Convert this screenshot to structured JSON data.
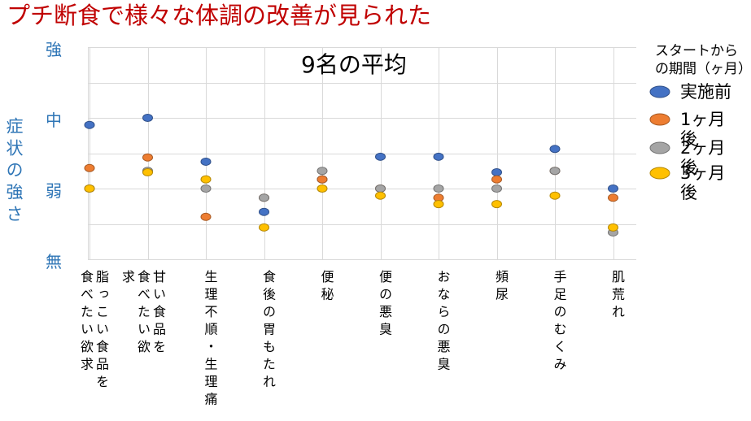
{
  "page": {
    "title": "プチ断食で様々な体調の改善が見られた"
  },
  "colors": {
    "title_text": "#C00000",
    "axis_text": "#2E75B6",
    "gridline": "#D9D9D9"
  },
  "chart_data": {
    "type": "scatter",
    "title": "9名の平均",
    "ylabel": "症状の強さ",
    "categories": [
      "脂っこい食品を食べたい欲求",
      "甘い食品を食べたい欲求",
      "生理不順・生理痛",
      "食後の胃もたれ",
      "便秘",
      "便の悪臭",
      "おならの悪臭",
      "頻尿",
      "手足のむくみ",
      "肌荒れ"
    ],
    "y_tick_labels": [
      {
        "value": 3,
        "label": "強"
      },
      {
        "value": 2,
        "label": "中"
      },
      {
        "value": 1,
        "label": "弱"
      },
      {
        "value": 0,
        "label": "無"
      }
    ],
    "ylim": [
      0,
      3
    ],
    "grid": true,
    "legend": {
      "title": "スタートからの期間（ヶ月）",
      "position": "right"
    },
    "series": [
      {
        "name": "実施前",
        "color": "#4472C4",
        "values": [
          1.9,
          2.0,
          1.38,
          0.67,
          1.13,
          1.45,
          1.45,
          1.23,
          1.56,
          1.0
        ]
      },
      {
        "name": "1ヶ月後",
        "color": "#ED7D31",
        "values": [
          1.29,
          1.44,
          0.6,
          0.87,
          1.13,
          1.0,
          0.87,
          1.13,
          1.25,
          0.87
        ]
      },
      {
        "name": "2ヶ月後",
        "color": "#A5A5A5",
        "values": [
          1.0,
          1.25,
          1.0,
          0.87,
          1.25,
          1.0,
          1.0,
          1.0,
          1.25,
          0.38
        ]
      },
      {
        "name": "3ヶ月後",
        "color": "#FFC000",
        "values": [
          1.0,
          1.23,
          1.13,
          0.45,
          1.0,
          0.9,
          0.78,
          0.78,
          0.9,
          0.45
        ]
      }
    ]
  }
}
